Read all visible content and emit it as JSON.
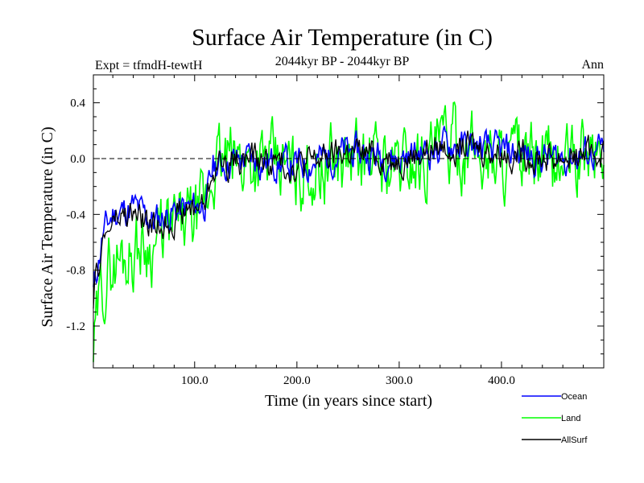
{
  "chart_data": {
    "type": "line",
    "title": "Surface Air Temperature (in C)",
    "subtitle": "2044kyr BP - 2044kyr BP",
    "expt_label": "Expt = tfmdH-tewtH",
    "season_label": "Ann",
    "xlabel": "Time (in years since start)",
    "ylabel": "Surface Air Temperature (in C)",
    "xlim": [
      1,
      500
    ],
    "ylim": [
      -1.5,
      0.6
    ],
    "xticks": [
      100,
      200,
      300,
      400
    ],
    "xtick_labels": [
      "100.0",
      "200.0",
      "300.0",
      "400.0"
    ],
    "yticks": [
      0.4,
      0.0,
      -0.4,
      -0.8,
      -1.2
    ],
    "ytick_labels": [
      "0.4",
      "0.0",
      "-0.4",
      "-0.8",
      "-1.2"
    ],
    "reference_line": 0.0,
    "series": [
      {
        "name": "Ocean",
        "color": "#0000ff",
        "anchors": [
          [
            1,
            -0.95
          ],
          [
            10,
            -0.55
          ],
          [
            20,
            -0.4
          ],
          [
            40,
            -0.35
          ],
          [
            60,
            -0.45
          ],
          [
            80,
            -0.38
          ],
          [
            100,
            -0.35
          ],
          [
            112,
            -0.3
          ],
          [
            118,
            -0.05
          ],
          [
            150,
            0.0
          ],
          [
            200,
            -0.05
          ],
          [
            250,
            0.05
          ],
          [
            300,
            0.0
          ],
          [
            350,
            0.1
          ],
          [
            400,
            0.05
          ],
          [
            450,
            0.0
          ],
          [
            500,
            0.05
          ]
        ],
        "amplitude": 0.1,
        "seed": 11
      },
      {
        "name": "Land",
        "color": "#00ff00",
        "anchors": [
          [
            1,
            -1.4
          ],
          [
            10,
            -0.9
          ],
          [
            20,
            -0.75
          ],
          [
            40,
            -0.65
          ],
          [
            60,
            -0.6
          ],
          [
            80,
            -0.5
          ],
          [
            100,
            -0.45
          ],
          [
            112,
            -0.35
          ],
          [
            118,
            -0.05
          ],
          [
            150,
            0.0
          ],
          [
            200,
            -0.1
          ],
          [
            250,
            0.0
          ],
          [
            300,
            -0.05
          ],
          [
            350,
            0.1
          ],
          [
            400,
            0.0
          ],
          [
            450,
            -0.05
          ],
          [
            500,
            0.05
          ]
        ],
        "amplitude": 0.22,
        "seed": 29
      },
      {
        "name": "AllSurf",
        "color": "#000000",
        "anchors": [
          [
            1,
            -1.0
          ],
          [
            10,
            -0.6
          ],
          [
            20,
            -0.45
          ],
          [
            40,
            -0.4
          ],
          [
            60,
            -0.5
          ],
          [
            80,
            -0.42
          ],
          [
            100,
            -0.35
          ],
          [
            112,
            -0.3
          ],
          [
            118,
            -0.05
          ],
          [
            150,
            0.0
          ],
          [
            200,
            -0.05
          ],
          [
            250,
            0.05
          ],
          [
            300,
            0.0
          ],
          [
            350,
            0.1
          ],
          [
            400,
            0.05
          ],
          [
            450,
            0.0
          ],
          [
            500,
            0.05
          ]
        ],
        "amplitude": 0.09,
        "seed": 47
      }
    ],
    "legend_position": "bottom-right"
  }
}
